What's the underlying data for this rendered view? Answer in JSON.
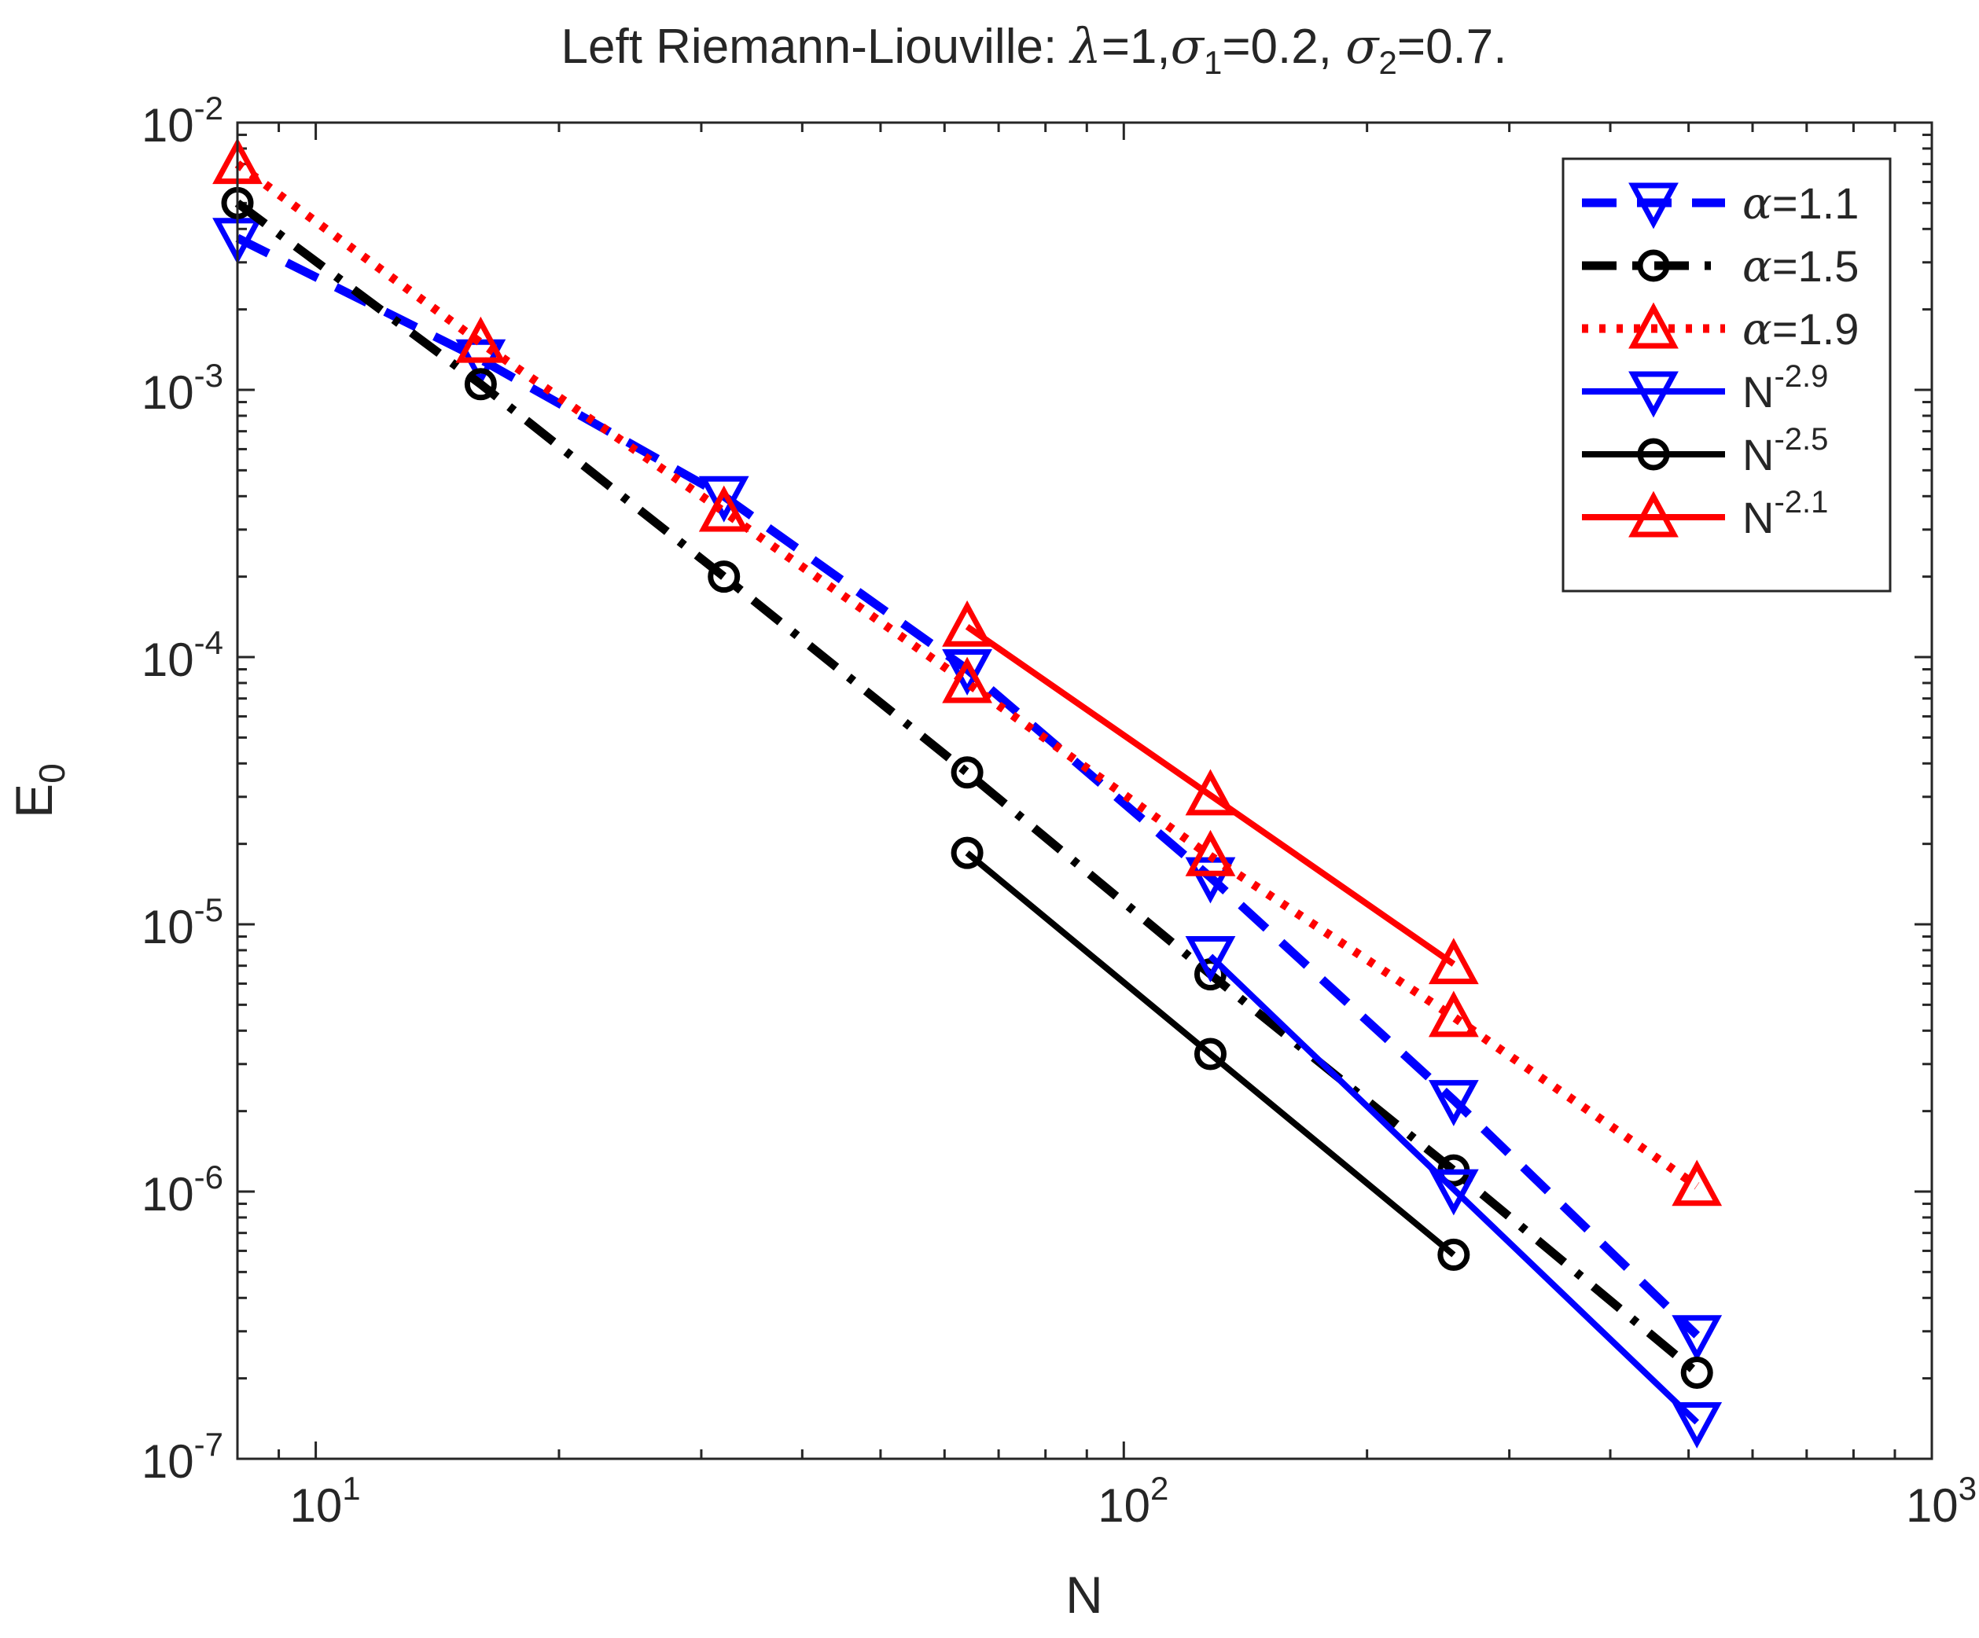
{
  "chart_data": {
    "type": "line",
    "title": {
      "prefix": "Left Riemann-Liouville: ",
      "lambda_symbol": "λ",
      "lambda_value": "=1,",
      "sigma_symbol": "σ",
      "sigma1_sub": "1",
      "sigma1_value": "=0.2, ",
      "sigma2_sub": "2",
      "sigma2_value": "=0.7."
    },
    "xlabel": "N",
    "ylabel": {
      "base": "E",
      "sub": "0"
    },
    "xscale": "log",
    "yscale": "log",
    "xlim": [
      8,
      1000
    ],
    "ylim": [
      1e-07,
      0.01
    ],
    "x_ticks": [
      {
        "value": 10,
        "base": "10",
        "exp": "1"
      },
      {
        "value": 100,
        "base": "10",
        "exp": "2"
      },
      {
        "value": 1000,
        "base": "10",
        "exp": "3"
      }
    ],
    "y_ticks": [
      {
        "value": 1e-07,
        "base": "10",
        "exp": "-7"
      },
      {
        "value": 1e-06,
        "base": "10",
        "exp": "-6"
      },
      {
        "value": 1e-05,
        "base": "10",
        "exp": "-5"
      },
      {
        "value": 0.0001,
        "base": "10",
        "exp": "-4"
      },
      {
        "value": 0.001,
        "base": "10",
        "exp": "-3"
      },
      {
        "value": 0.01,
        "base": "10",
        "exp": "-2"
      }
    ],
    "legend_position": "top-right",
    "series": [
      {
        "name": "α=1.1",
        "label_symbol": "α",
        "label_text": "=1.1",
        "color": "#0000ff",
        "dash": "dashed",
        "marker": "triangle-down",
        "marker_fill": false,
        "x": [
          8,
          16,
          32,
          64,
          128,
          256,
          512
        ],
        "y": [
          0.0037,
          0.0013,
          0.0004,
          9e-05,
          1.5e-05,
          2.2e-06,
          2.9e-07
        ]
      },
      {
        "name": "α=1.5",
        "label_symbol": "α",
        "label_text": "=1.5",
        "color": "#000000",
        "dash": "dashdot",
        "marker": "circle",
        "marker_fill": false,
        "x": [
          8,
          16,
          32,
          64,
          128,
          256,
          512
        ],
        "y": [
          0.005,
          0.00105,
          0.0002,
          3.7e-05,
          6.5e-06,
          1.2e-06,
          2.1e-07
        ]
      },
      {
        "name": "α=1.9",
        "label_symbol": "α",
        "label_text": "=1.9",
        "color": "#ff0000",
        "dash": "dotted",
        "marker": "triangle-up",
        "marker_fill": false,
        "x": [
          8,
          16,
          32,
          64,
          128,
          256,
          512
        ],
        "y": [
          0.007,
          0.0015,
          0.00035,
          8e-05,
          1.8e-05,
          4.5e-06,
          1.05e-06
        ]
      },
      {
        "name": "N^-2.9",
        "label_base": "N",
        "label_exp": "-2.9",
        "color": "#0000ff",
        "dash": "solid",
        "marker": "triangle-down",
        "marker_fill": false,
        "x": [
          128,
          256,
          512
        ],
        "y": [
          7.6e-06,
          1.02e-06,
          1.37e-07
        ]
      },
      {
        "name": "N^-2.5",
        "label_base": "N",
        "label_exp": "-2.5",
        "color": "#000000",
        "dash": "solid",
        "marker": "circle",
        "marker_fill": false,
        "x": [
          64,
          128,
          256
        ],
        "y": [
          1.85e-05,
          3.27e-06,
          5.8e-07
        ]
      },
      {
        "name": "N^-2.1",
        "label_base": "N",
        "label_exp": "-2.1",
        "color": "#ff0000",
        "dash": "solid",
        "marker": "triangle-up",
        "marker_fill": false,
        "x": [
          64,
          128,
          256
        ],
        "y": [
          0.00013,
          3.04e-05,
          7.1e-06
        ]
      }
    ]
  }
}
